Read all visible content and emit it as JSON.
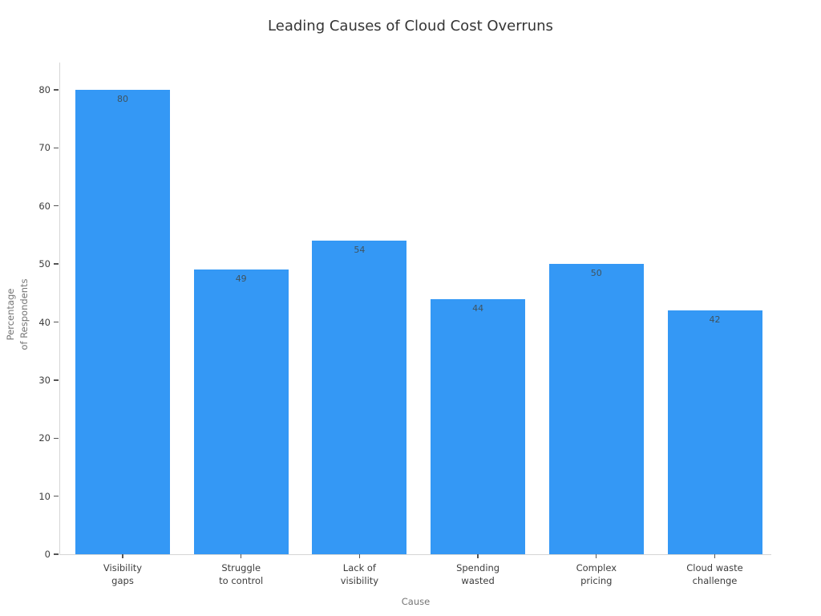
{
  "chart_data": {
    "type": "bar",
    "title": "Leading Causes of Cloud Cost Overruns",
    "xlabel": "Cause",
    "ylabel": "Percentage\nof Respondents",
    "categories": [
      "Visibility\ngaps",
      "Struggle\nto control",
      "Lack of\nvisibility",
      "Spending\nwasted",
      "Complex\npricing",
      "Cloud waste\nchallenge"
    ],
    "values": [
      80,
      49,
      54,
      44,
      50,
      42
    ],
    "value_labels": [
      "80",
      "49",
      "54",
      "44",
      "50",
      "42"
    ],
    "yticks": [
      0,
      10,
      20,
      30,
      40,
      50,
      60,
      70,
      80
    ],
    "ylim": [
      0,
      84.7
    ],
    "grid": false,
    "legend": "none",
    "colors": {
      "bar": "#3498F5",
      "spine": "#d6d6d6",
      "tick": "#555555",
      "tick_label": "#3d3d3d",
      "axis_label": "#757575",
      "title": "#353535",
      "value_label": "#40535e",
      "background": "#ffffff"
    }
  }
}
